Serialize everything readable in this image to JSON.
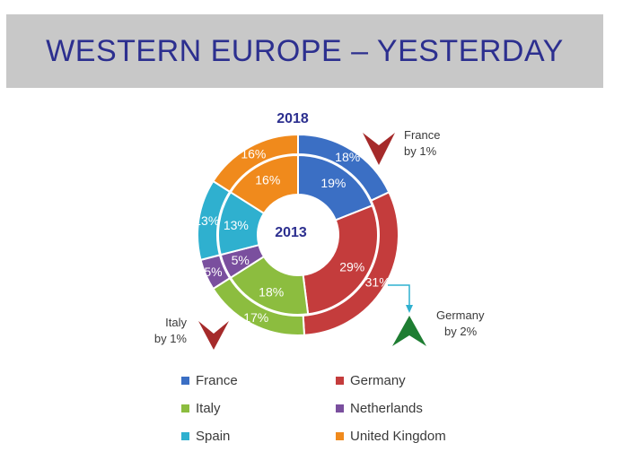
{
  "title": "WESTERN EUROPE – YESTERDAY",
  "chart_data": {
    "type": "donut",
    "categories": [
      "France",
      "Germany",
      "Italy",
      "Netherlands",
      "Spain",
      "United Kingdom"
    ],
    "colors": {
      "France": "#3b6fc4",
      "Germany": "#c43c3c",
      "Italy": "#8cbd3f",
      "Netherlands": "#7a4f9e",
      "Spain": "#2fb0cf",
      "United Kingdom": "#f08a1c"
    },
    "series": [
      {
        "name": "2018",
        "ring": "outer",
        "values": [
          18,
          31,
          17,
          5,
          13,
          16
        ]
      },
      {
        "name": "2013",
        "ring": "inner",
        "values": [
          19,
          29,
          18,
          5,
          13,
          16
        ]
      }
    ],
    "value_suffix": "%",
    "annotations": [
      {
        "text_line1": "France",
        "text_line2": "by 1%",
        "direction": "down",
        "color": "#a52a2a"
      },
      {
        "text_line1": "Italy",
        "text_line2": "by 1%",
        "direction": "down",
        "color": "#a52a2a"
      },
      {
        "text_line1": "Germany",
        "text_line2": "by 2%",
        "direction": "up",
        "color": "#1e7d32"
      }
    ],
    "legend_position": "bottom"
  }
}
